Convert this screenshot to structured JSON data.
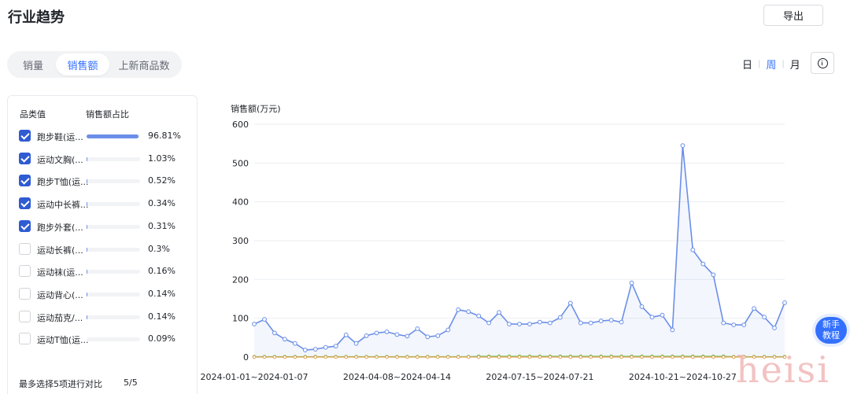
{
  "header": {
    "title": "行业趋势",
    "export_label": "导出"
  },
  "metric_tabs": {
    "tabs": [
      "销量",
      "销售额",
      "上新商品数"
    ],
    "selected": 1
  },
  "period": {
    "options": [
      "日",
      "周",
      "月"
    ],
    "selected": 1
  },
  "icons": {
    "info": "info-icon",
    "check": "check-icon"
  },
  "colors": {
    "accent": "#3370ff",
    "series_main": "#6b8fe8",
    "series_green": "#7cc66b",
    "checkbox": "#2f5bd3"
  },
  "category_panel": {
    "header_name": "品类值",
    "header_share": "销售额占比",
    "items": [
      {
        "name": "跑步鞋(运...",
        "share": "96.81%",
        "share_value": 96.81,
        "checked": true
      },
      {
        "name": "运动文胸(...",
        "share": "1.03%",
        "share_value": 1.03,
        "checked": true
      },
      {
        "name": "跑步T恤(运...",
        "share": "0.52%",
        "share_value": 0.52,
        "checked": true
      },
      {
        "name": "运动中长裤...",
        "share": "0.34%",
        "share_value": 0.34,
        "checked": true
      },
      {
        "name": "跑步外套(...",
        "share": "0.31%",
        "share_value": 0.31,
        "checked": true
      },
      {
        "name": "运动长裤(...",
        "share": "0.3%",
        "share_value": 0.3,
        "checked": false
      },
      {
        "name": "运动袜(运...",
        "share": "0.16%",
        "share_value": 0.16,
        "checked": false
      },
      {
        "name": "运动背心(...",
        "share": "0.14%",
        "share_value": 0.14,
        "checked": false
      },
      {
        "name": "运动茄克/...",
        "share": "0.14%",
        "share_value": 0.14,
        "checked": false
      },
      {
        "name": "运动T恤(运...",
        "share": "0.09%",
        "share_value": 0.09,
        "checked": false
      }
    ],
    "footer_text": "最多选择5项进行对比",
    "footer_count": "5/5"
  },
  "help": {
    "line1": "新手",
    "line2": "教程"
  },
  "watermark": "heisi",
  "chart_data": {
    "type": "line",
    "ylabel": "销售额(万元)",
    "ylim": [
      0,
      600
    ],
    "yticks": [
      0,
      100,
      200,
      300,
      400,
      500,
      600
    ],
    "xtick_labels": [
      "2024-01-01~2024-01-07",
      "2024-04-08~2024-04-14",
      "2024-07-15~2024-07-21",
      "2024-10-21~2024-10-27"
    ],
    "xtick_indices": [
      0,
      14,
      28,
      42
    ],
    "grid": true,
    "series": [
      {
        "color": "#6b8fe8",
        "area": true,
        "values": [
          85,
          97,
          62,
          46,
          35,
          18,
          20,
          25,
          28,
          57,
          35,
          55,
          62,
          65,
          58,
          54,
          73,
          52,
          55,
          70,
          122,
          117,
          106,
          88,
          115,
          85,
          85,
          85,
          90,
          88,
          102,
          139,
          88,
          88,
          93,
          95,
          90,
          191,
          130,
          103,
          108,
          70,
          545,
          276,
          240,
          212,
          88,
          83,
          83,
          125,
          103,
          75,
          140
        ]
      },
      {
        "color": "#7cc66b",
        "area": false,
        "values": [
          1,
          1,
          1,
          1,
          1,
          1,
          1,
          1,
          1,
          1,
          1,
          1,
          1,
          1,
          1,
          1,
          1,
          1,
          1,
          1,
          1,
          1,
          2,
          2,
          2,
          2,
          2,
          2,
          2,
          2,
          2,
          2,
          2,
          2,
          2,
          2,
          2,
          2,
          2,
          2,
          2,
          2,
          2,
          2,
          2,
          2,
          2,
          1,
          1,
          1,
          1,
          1,
          1
        ]
      },
      {
        "color": "#e0a04f",
        "area": false,
        "values": [
          0,
          0,
          0,
          0,
          0,
          0,
          0,
          0,
          0,
          0,
          0,
          0,
          0,
          0,
          0,
          0,
          0,
          0,
          0,
          0,
          0,
          0,
          0,
          0,
          0,
          0,
          0,
          0,
          0,
          0,
          0,
          0,
          0,
          0,
          0,
          0,
          0,
          0,
          0,
          0,
          0,
          0,
          0,
          0,
          0,
          0,
          0,
          0,
          0,
          0,
          0,
          0,
          0
        ]
      }
    ]
  }
}
